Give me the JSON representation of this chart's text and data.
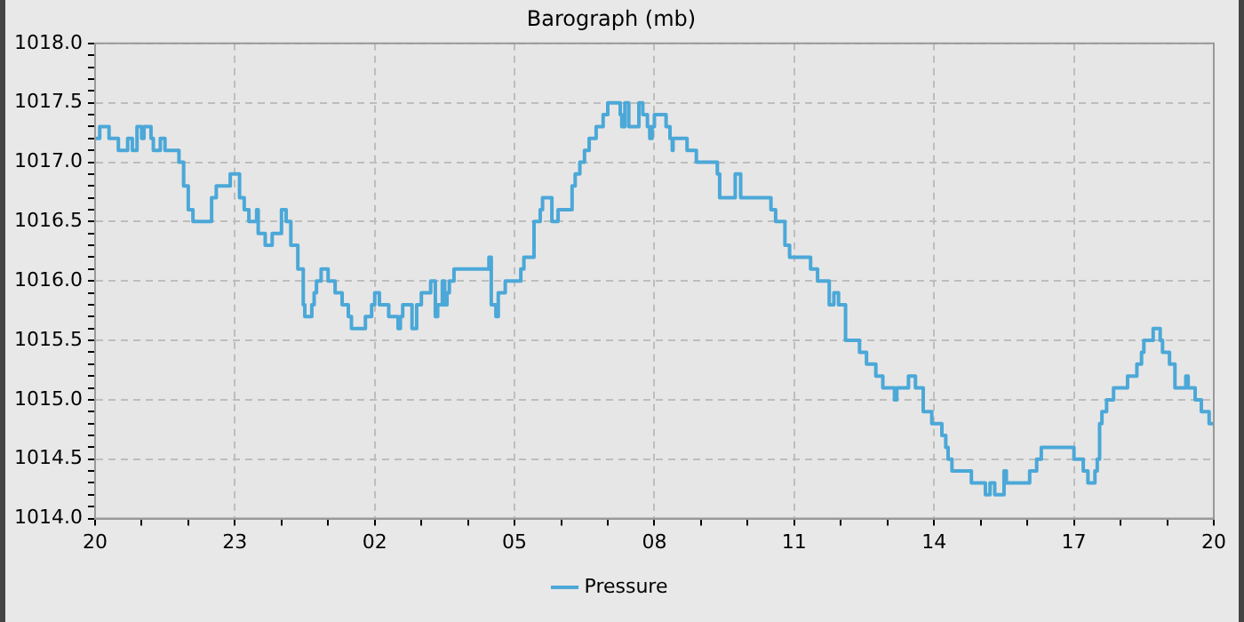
{
  "chart_data": {
    "type": "step",
    "title": "Barograph (mb)",
    "x": [
      "--01-01T20:00",
      "--01-01T20:06",
      "--01-01T20:18",
      "--01-01T20:30",
      "--01-01T20:42",
      "--01-01T20:48",
      "--01-01T20:54",
      "--01-01T21:00",
      "--01-01T21:03",
      "--01-01T21:12",
      "--01-01T21:15",
      "--01-01T21:24",
      "--01-01T21:30",
      "--01-01T21:48",
      "--01-01T21:54",
      "--01-01T22:00",
      "--01-01T22:06",
      "--01-01T22:30",
      "--01-01T22:36",
      "--01-01T22:54",
      "--01-01T23:06",
      "--01-01T23:12",
      "--01-01T23:18",
      "--01-01T23:28",
      "--01-01T23:30",
      "--01-01T23:39",
      "--01-01T23:48",
      "--01-02T00:00",
      "--01-02T00:06",
      "--01-02T00:12",
      "--01-02T00:21",
      "--01-02T00:28",
      "--01-02T00:30",
      "--01-02T00:39",
      "--01-02T00:42",
      "--01-02T00:45",
      "--01-02T00:51",
      "--01-02T01:00",
      "--01-02T01:09",
      "--01-02T01:18",
      "--01-02T01:26",
      "--01-02T01:30",
      "--01-02T01:48",
      "--01-02T01:56",
      "--01-02T02:00",
      "--01-02T02:06",
      "--01-02T02:18",
      "--01-02T02:30",
      "--01-02T02:33",
      "--01-02T02:36",
      "--01-02T02:48",
      "--01-02T02:54",
      "--01-02T03:00",
      "--01-02T03:12",
      "--01-02T03:18",
      "--01-02T03:21",
      "--01-02T03:27",
      "--01-02T03:30",
      "--01-02T03:33",
      "--01-02T03:36",
      "--01-02T03:42",
      "--01-02T04:27",
      "--01-02T04:30",
      "--01-02T04:36",
      "--01-02T04:39",
      "--01-02T04:48",
      "--01-02T05:08",
      "--01-02T05:12",
      "--01-02T05:25",
      "--01-02T05:33",
      "--01-02T05:36",
      "--01-02T05:48",
      "--01-02T05:56",
      "--01-02T06:14",
      "--01-02T06:18",
      "--01-02T06:24",
      "--01-02T06:30",
      "--01-02T06:36",
      "--01-02T06:45",
      "--01-02T06:54",
      "--01-02T07:00",
      "--01-02T07:16",
      "--01-02T07:18",
      "--01-02T07:22",
      "--01-02T07:27",
      "--01-02T07:40",
      "--01-02T07:45",
      "--01-02T07:51",
      "--01-02T07:54",
      "--01-02T07:57",
      "--01-02T08:00",
      "--01-02T08:15",
      "--01-02T08:20",
      "--01-02T08:23",
      "--01-02T08:24",
      "--01-02T08:42",
      "--01-02T08:54",
      "--01-02T09:21",
      "--01-02T09:24",
      "--01-02T09:44",
      "--01-02T09:51",
      "--01-02T10:30",
      "--01-02T10:36",
      "--01-02T10:48",
      "--01-02T10:54",
      "--01-02T11:21",
      "--01-02T11:30",
      "--01-02T11:45",
      "--01-02T11:51",
      "--01-02T11:57",
      "--01-02T12:06",
      "--01-02T12:24",
      "--01-02T12:33",
      "--01-02T12:45",
      "--01-02T12:54",
      "--01-02T13:09",
      "--01-02T13:12",
      "--01-02T13:27",
      "--01-02T13:36",
      "--01-02T13:46",
      "--01-02T13:57",
      "--01-02T14:10",
      "--01-02T14:15",
      "--01-02T14:18",
      "--01-02T14:23",
      "--01-02T14:48",
      "--01-02T15:06",
      "--01-02T15:12",
      "--01-02T15:18",
      "--01-02T15:30",
      "--01-02T15:33",
      "--01-02T16:03",
      "--01-02T16:12",
      "--01-02T16:18",
      "--01-02T17:00",
      "--01-02T17:12",
      "--01-02T17:18",
      "--01-02T17:27",
      "--01-02T17:30",
      "--01-02T17:33",
      "--01-02T17:36",
      "--01-02T17:42",
      "--01-02T17:51",
      "--01-02T18:09",
      "--01-02T18:21",
      "--01-02T18:27",
      "--01-02T18:30",
      "--01-02T18:42",
      "--01-02T18:51",
      "--01-02T18:54",
      "--01-02T19:03",
      "--01-02T19:10",
      "--01-02T19:24",
      "--01-02T19:27",
      "--01-02T19:36",
      "--01-02T19:44",
      "--01-02T19:54",
      "--01-02T20:00"
    ],
    "series": [
      {
        "name": "Pressure",
        "color": "#4ba8d8",
        "values": [
          1017.2,
          1017.3,
          1017.2,
          1017.1,
          1017.2,
          1017.1,
          1017.3,
          1017.2,
          1017.3,
          1017.2,
          1017.1,
          1017.2,
          1017.1,
          1017.0,
          1016.8,
          1016.6,
          1016.5,
          1016.7,
          1016.8,
          1016.9,
          1016.7,
          1016.6,
          1016.5,
          1016.6,
          1016.4,
          1016.3,
          1016.4,
          1016.6,
          1016.5,
          1016.3,
          1016.1,
          1015.8,
          1015.7,
          1015.8,
          1015.9,
          1016.0,
          1016.1,
          1016.0,
          1015.9,
          1015.8,
          1015.7,
          1015.6,
          1015.7,
          1015.8,
          1015.9,
          1015.8,
          1015.7,
          1015.6,
          1015.7,
          1015.8,
          1015.6,
          1015.8,
          1015.9,
          1016.0,
          1015.7,
          1015.8,
          1016.0,
          1015.8,
          1015.9,
          1016.0,
          1016.1,
          1016.2,
          1015.8,
          1015.7,
          1015.9,
          1016.0,
          1016.1,
          1016.2,
          1016.5,
          1016.6,
          1016.7,
          1016.5,
          1016.6,
          1016.8,
          1016.9,
          1017.0,
          1017.1,
          1017.2,
          1017.3,
          1017.4,
          1017.5,
          1017.4,
          1017.3,
          1017.5,
          1017.3,
          1017.5,
          1017.4,
          1017.3,
          1017.2,
          1017.3,
          1017.4,
          1017.3,
          1017.2,
          1017.1,
          1017.2,
          1017.1,
          1017.0,
          1016.9,
          1016.7,
          1016.9,
          1016.7,
          1016.6,
          1016.5,
          1016.3,
          1016.2,
          1016.1,
          1016.0,
          1015.8,
          1015.9,
          1015.8,
          1015.5,
          1015.4,
          1015.3,
          1015.2,
          1015.1,
          1015.0,
          1015.1,
          1015.2,
          1015.1,
          1014.9,
          1014.8,
          1014.7,
          1014.6,
          1014.5,
          1014.4,
          1014.3,
          1014.2,
          1014.3,
          1014.2,
          1014.4,
          1014.3,
          1014.4,
          1014.5,
          1014.6,
          1014.5,
          1014.4,
          1014.3,
          1014.4,
          1014.5,
          1014.8,
          1014.9,
          1015.0,
          1015.1,
          1015.2,
          1015.3,
          1015.4,
          1015.5,
          1015.6,
          1015.5,
          1015.4,
          1015.3,
          1015.1,
          1015.2,
          1015.1,
          1015.0,
          1014.9,
          1014.8,
          1014.8
        ]
      }
    ],
    "xlim": [
      "--01-01T20:00",
      "--01-02T20:00"
    ],
    "xticks": [
      {
        "value": "--01-01T20:00",
        "label": "20"
      },
      {
        "value": "--01-01T21:00",
        "label": null
      },
      {
        "value": "--01-01T22:00",
        "label": null
      },
      {
        "value": "--01-01T23:00",
        "label": "23"
      },
      {
        "value": "--01-02T00:00",
        "label": null
      },
      {
        "value": "--01-02T01:00",
        "label": null
      },
      {
        "value": "--01-02T02:00",
        "label": "02"
      },
      {
        "value": "--01-02T03:00",
        "label": null
      },
      {
        "value": "--01-02T04:00",
        "label": null
      },
      {
        "value": "--01-02T05:00",
        "label": "05"
      },
      {
        "value": "--01-02T06:00",
        "label": null
      },
      {
        "value": "--01-02T07:00",
        "label": null
      },
      {
        "value": "--01-02T08:00",
        "label": "08"
      },
      {
        "value": "--01-02T09:00",
        "label": null
      },
      {
        "value": "--01-02T10:00",
        "label": null
      },
      {
        "value": "--01-02T11:00",
        "label": "11"
      },
      {
        "value": "--01-02T12:00",
        "label": null
      },
      {
        "value": "--01-02T13:00",
        "label": null
      },
      {
        "value": "--01-02T14:00",
        "label": "14"
      },
      {
        "value": "--01-02T15:00",
        "label": null
      },
      {
        "value": "--01-02T16:00",
        "label": null
      },
      {
        "value": "--01-02T17:00",
        "label": "17"
      },
      {
        "value": "--01-02T18:00",
        "label": null
      },
      {
        "value": "--01-02T19:00",
        "label": null
      },
      {
        "value": "--01-02T20:00",
        "label": "20"
      }
    ],
    "ylim": [
      1014,
      1018
    ],
    "yticks": [
      {
        "value": 1014,
        "label": "1014.0"
      },
      {
        "value": 1014.1,
        "label": null
      },
      {
        "value": 1014.2,
        "label": null
      },
      {
        "value": 1014.3,
        "label": null
      },
      {
        "value": 1014.4,
        "label": null
      },
      1014.5,
      {
        "value": 1014.6,
        "label": null
      },
      {
        "value": 1014.7,
        "label": null
      },
      {
        "value": 1014.8,
        "label": null
      },
      {
        "value": 1014.9,
        "label": null
      },
      {
        "value": 1015,
        "label": "1015.0"
      },
      {
        "value": 1015.1,
        "label": null
      },
      {
        "value": 1015.2,
        "label": null
      },
      {
        "value": 1015.3,
        "label": null
      },
      {
        "value": 1015.4,
        "label": null
      },
      1015.5,
      {
        "value": 1015.6,
        "label": null
      },
      {
        "value": 1015.7,
        "label": null
      },
      {
        "value": 1015.8,
        "label": null
      },
      {
        "value": 1015.9,
        "label": null
      },
      {
        "value": 1016,
        "label": "1016.0"
      },
      {
        "value": 1016.1,
        "label": null
      },
      {
        "value": 1016.2,
        "label": null
      },
      {
        "value": 1016.3,
        "label": null
      },
      {
        "value": 1016.4,
        "label": null
      },
      1016.5,
      {
        "value": 1016.6,
        "label": null
      },
      {
        "value": 1016.7,
        "label": null
      },
      {
        "value": 1016.8,
        "label": null
      },
      {
        "value": 1016.9,
        "label": null
      },
      {
        "value": 1017,
        "label": "1017.0"
      },
      {
        "value": 1017.1,
        "label": null
      },
      {
        "value": 1017.2,
        "label": null
      },
      {
        "value": 1017.3,
        "label": null
      },
      {
        "value": 1017.4,
        "label": null
      },
      1017.5,
      {
        "value": 1017.6,
        "label": null
      },
      {
        "value": 1017.7,
        "label": null
      },
      {
        "value": 1017.8,
        "label": null
      },
      {
        "value": 1017.9,
        "label": null
      },
      {
        "value": 1018,
        "label": "1018.0"
      }
    ],
    "grid": true,
    "legend": "bottom",
    "line_style": "solid",
    "marker": "none"
  }
}
